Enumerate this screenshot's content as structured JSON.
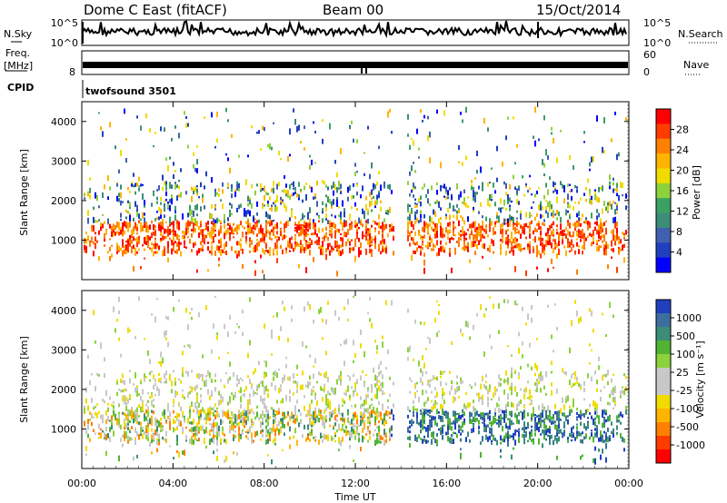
{
  "header": {
    "radar": "Dome C East (fitACF)",
    "beam": "Beam 00",
    "date": "15/Oct/2014"
  },
  "top_panels": {
    "nsky_label": "N.Sky",
    "nsky_ticks": [
      "10^5",
      "10^0"
    ],
    "nsearch_label": "N.Search",
    "nsearch_ticks": [
      "10^5",
      "10^0"
    ],
    "freq_label_1": "Freq.",
    "freq_label_2": "[MHz]",
    "freq_tick": "8",
    "nave_label": "Nave",
    "nave_ticks": [
      "60",
      "0"
    ],
    "cpid_label": "CPID",
    "cpid_value": "twofsound 3501"
  },
  "chart_data": [
    {
      "type": "heatmap",
      "name": "power",
      "ylabel": "Slant Range [km]",
      "yticks": [
        "1000",
        "2000",
        "3000",
        "4000"
      ],
      "ylim": [
        0,
        4500
      ],
      "xlim": [
        0,
        24
      ],
      "colorbar_label": "Power [dB]",
      "colorbar_ticks": [
        "28",
        "24",
        "20",
        "16",
        "12",
        "8",
        "4"
      ],
      "colorbar_colors": [
        "#ff0000",
        "#ff3c00",
        "#ff8000",
        "#ffb400",
        "#f0dc00",
        "#8cd23c",
        "#3ca064",
        "#3c8c78",
        "#4060b0",
        "#2040c0",
        "#0000ff"
      ]
    },
    {
      "type": "heatmap",
      "name": "velocity",
      "ylabel": "Slant Range [km]",
      "yticks": [
        "1000",
        "2000",
        "3000",
        "4000"
      ],
      "ylim": [
        0,
        4500
      ],
      "xlim": [
        0,
        24
      ],
      "colorbar_label": "Velocity [m s⁻¹]",
      "colorbar_ticks": [
        "1000",
        "500",
        "100",
        "25",
        "-25",
        "-100",
        "-500",
        "-1000"
      ],
      "colorbar_colors": [
        "#2040c0",
        "#3c6ea0",
        "#3c8c78",
        "#50b432",
        "#8cd23c",
        "#c8c8c8",
        "#c8c8c8",
        "#f0dc00",
        "#ffb400",
        "#ff8000",
        "#ff3c00",
        "#ff0000"
      ]
    }
  ],
  "xaxis": {
    "label": "Time UT",
    "ticks": [
      "00:00",
      "04:00",
      "08:00",
      "12:00",
      "16:00",
      "20:00",
      "00:00"
    ]
  }
}
